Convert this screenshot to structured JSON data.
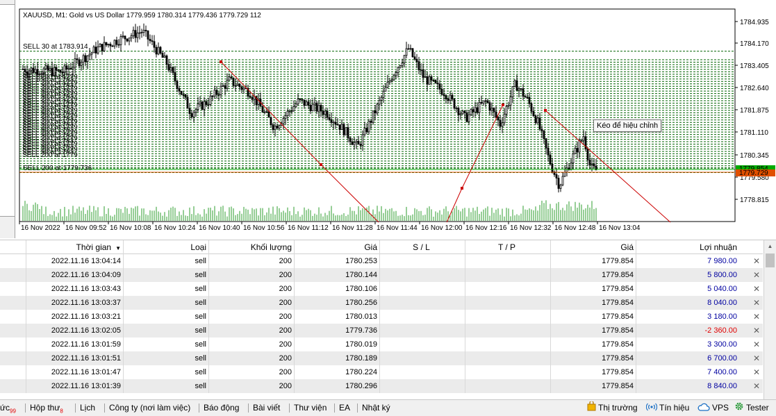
{
  "chart": {
    "header": "XAUUSD, M1:  Gold vs US Dollar  1779.959 1780.314 1779.436 1779.729  112",
    "price_labels": [
      "1784.935",
      "1784.170",
      "1783.405",
      "1782.640",
      "1781.875",
      "1781.110",
      "1780.345",
      "1779.580",
      "1778.815"
    ],
    "bid_tag": "1779.854",
    "ask_tag": "1779.729",
    "time_labels": [
      "16 Nov 2022",
      "16 Nov 09:52",
      "16 Nov 10:08",
      "16 Nov 10:24",
      "16 Nov 10:40",
      "16 Nov 10:56",
      "16 Nov 11:12",
      "16 Nov 11:28",
      "16 Nov 11:44",
      "16 Nov 12:00",
      "16 Nov 12:16",
      "16 Nov 12:32",
      "16 Nov 12:48",
      "16 Nov 13:04"
    ],
    "order_labels": [
      "SELL 30 at 1783.914",
      "SELL 200 at 1779.736"
    ],
    "tooltip": "Kéo để hiệu chỉnh",
    "colors": {
      "candle": "#000000",
      "levels": "#006400",
      "trade_line": "#cc0000",
      "bid": "#00aa00",
      "ask": "#e05000"
    }
  },
  "table": {
    "headers": {
      "time": "Thời gian",
      "type": "Loại",
      "volume": "Khối lượng",
      "price": "Giá",
      "sl": "S / L",
      "tp": "T / P",
      "current": "Giá",
      "profit": "Lợi nhuận"
    },
    "close_glyph": "✕",
    "rows": [
      {
        "time": "2022.11.16 13:04:14",
        "type": "sell",
        "volume": "200",
        "price": "1780.253",
        "sl": "",
        "tp": "",
        "current": "1779.854",
        "profit": "7 980.00",
        "negative": false
      },
      {
        "time": "2022.11.16 13:04:09",
        "type": "sell",
        "volume": "200",
        "price": "1780.144",
        "sl": "",
        "tp": "",
        "current": "1779.854",
        "profit": "5 800.00",
        "negative": false
      },
      {
        "time": "2022.11.16 13:03:43",
        "type": "sell",
        "volume": "200",
        "price": "1780.106",
        "sl": "",
        "tp": "",
        "current": "1779.854",
        "profit": "5 040.00",
        "negative": false
      },
      {
        "time": "2022.11.16 13:03:37",
        "type": "sell",
        "volume": "200",
        "price": "1780.256",
        "sl": "",
        "tp": "",
        "current": "1779.854",
        "profit": "8 040.00",
        "negative": false
      },
      {
        "time": "2022.11.16 13:03:21",
        "type": "sell",
        "volume": "200",
        "price": "1780.013",
        "sl": "",
        "tp": "",
        "current": "1779.854",
        "profit": "3 180.00",
        "negative": false
      },
      {
        "time": "2022.11.16 13:02:05",
        "type": "sell",
        "volume": "200",
        "price": "1779.736",
        "sl": "",
        "tp": "",
        "current": "1779.854",
        "profit": "-2 360.00",
        "negative": true
      },
      {
        "time": "2022.11.16 13:01:59",
        "type": "sell",
        "volume": "200",
        "price": "1780.019",
        "sl": "",
        "tp": "",
        "current": "1779.854",
        "profit": "3 300.00",
        "negative": false
      },
      {
        "time": "2022.11.16 13:01:51",
        "type": "sell",
        "volume": "200",
        "price": "1780.189",
        "sl": "",
        "tp": "",
        "current": "1779.854",
        "profit": "6 700.00",
        "negative": false
      },
      {
        "time": "2022.11.16 13:01:47",
        "type": "sell",
        "volume": "200",
        "price": "1780.224",
        "sl": "",
        "tp": "",
        "current": "1779.854",
        "profit": "7 400.00",
        "negative": false
      },
      {
        "time": "2022.11.16 13:01:39",
        "type": "sell",
        "volume": "200",
        "price": "1780.296",
        "sl": "",
        "tp": "",
        "current": "1779.854",
        "profit": "8 840.00",
        "negative": false
      }
    ]
  },
  "tabs": {
    "items": [
      {
        "label": "ức",
        "badge": "99"
      },
      {
        "label": "Hộp thư",
        "badge": "8"
      },
      {
        "label": "Lịch",
        "badge": ""
      },
      {
        "label": "Công ty (nơi làm việc)",
        "badge": ""
      },
      {
        "label": "Báo động",
        "badge": ""
      },
      {
        "label": "Bài viết",
        "badge": ""
      },
      {
        "label": "Thư viện",
        "badge": ""
      },
      {
        "label": "EA",
        "badge": ""
      },
      {
        "label": "Nhật ký",
        "badge": ""
      }
    ],
    "right": {
      "market": "Thị trường",
      "signals": "Tín hiệu",
      "vps": "VPS",
      "tester": "Tester"
    }
  }
}
